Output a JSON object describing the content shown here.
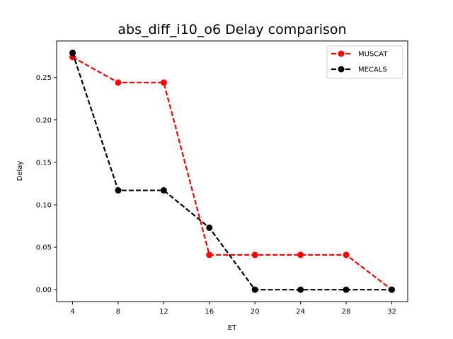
{
  "chart_data": {
    "type": "line",
    "title": "abs_diff_i10_o6 Delay comparison",
    "xlabel": "ET",
    "ylabel": "Delay",
    "x": [
      4,
      8,
      12,
      16,
      20,
      24,
      28,
      32
    ],
    "xticks": [
      "4",
      "8",
      "12",
      "16",
      "20",
      "24",
      "28",
      "32"
    ],
    "yticks": [
      "0.00",
      "0.05",
      "0.10",
      "0.15",
      "0.20",
      "0.25"
    ],
    "ytick_values": [
      0,
      0.05,
      0.1,
      0.15,
      0.2,
      0.25
    ],
    "xlim": [
      2.6,
      33.4
    ],
    "ylim": [
      -0.014,
      0.293
    ],
    "grid": false,
    "legend_position": "top-right",
    "series": [
      {
        "name": "MUSCAT",
        "color": "#ff0000",
        "style": "dashed",
        "marker": "circle",
        "values": [
          0.274,
          0.244,
          0.244,
          0.041,
          0.041,
          0.041,
          0.041,
          0.0
        ]
      },
      {
        "name": "MECALS",
        "color": "#000000",
        "style": "dashed",
        "marker": "circle",
        "values": [
          0.279,
          0.117,
          0.117,
          0.073,
          0.0,
          0.0,
          0.0,
          0.0
        ]
      }
    ]
  }
}
